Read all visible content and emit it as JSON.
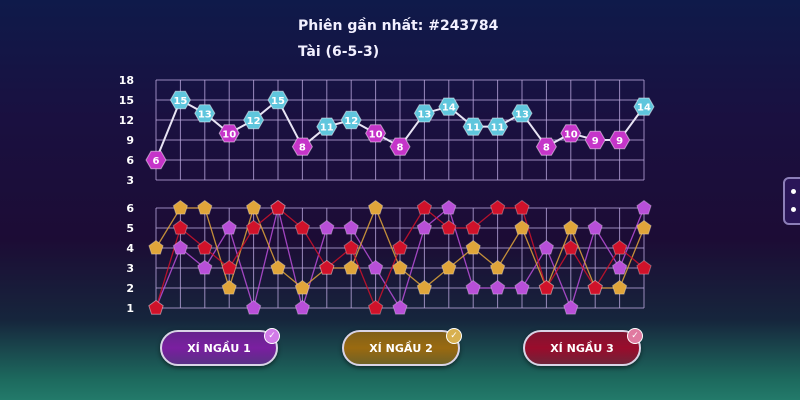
{
  "header": {
    "session": "Phiên gần nhất: #243784",
    "result": "Tài (6-5-3)"
  },
  "chart_data": [
    {
      "type": "line",
      "name_role": "sum",
      "yticks": [
        18,
        15,
        12,
        9,
        6,
        3
      ],
      "ylim": [
        3,
        18
      ],
      "values": [
        6,
        15,
        13,
        10,
        12,
        15,
        8,
        11,
        12,
        10,
        8,
        13,
        14,
        11,
        11,
        13,
        8,
        10,
        9,
        9,
        14
      ],
      "colors": {
        "high": "#5fc6dd",
        "low": "#c535c9"
      },
      "threshold_high": 11,
      "grid": true
    },
    {
      "type": "line",
      "yticks": [
        6,
        5,
        4,
        3,
        2,
        1
      ],
      "ylim": [
        1,
        6
      ],
      "grid": true,
      "series": [
        {
          "key": "dice1",
          "color": "#b84fd8",
          "values": [
            1,
            4,
            3,
            5,
            1,
            6,
            1,
            5,
            5,
            3,
            1,
            5,
            6,
            2,
            2,
            2,
            4,
            1,
            5,
            3,
            6
          ]
        },
        {
          "key": "dice2",
          "color": "#e0a53a",
          "values": [
            4,
            6,
            6,
            2,
            6,
            3,
            2,
            3,
            3,
            6,
            3,
            2,
            3,
            4,
            3,
            5,
            2,
            5,
            2,
            2,
            5
          ]
        },
        {
          "key": "dice3",
          "color": "#d0122a",
          "values": [
            1,
            5,
            4,
            3,
            5,
            6,
            5,
            3,
            4,
            1,
            4,
            6,
            5,
            5,
            6,
            6,
            2,
            4,
            2,
            4,
            3
          ]
        }
      ]
    }
  ],
  "buttons": [
    {
      "label": "XÍ NGẦU 1",
      "color": "#7a1fa0",
      "check": "#d27be8"
    },
    {
      "label": "XÍ NGẦU 2",
      "color": "#9a6a10",
      "check": "#d8b050"
    },
    {
      "label": "XÍ NGẦU 3",
      "color": "#9a0c2c",
      "check": "#e07aa0"
    }
  ],
  "icons": {
    "check": "check-icon",
    "side": "dice-panel-icon"
  }
}
